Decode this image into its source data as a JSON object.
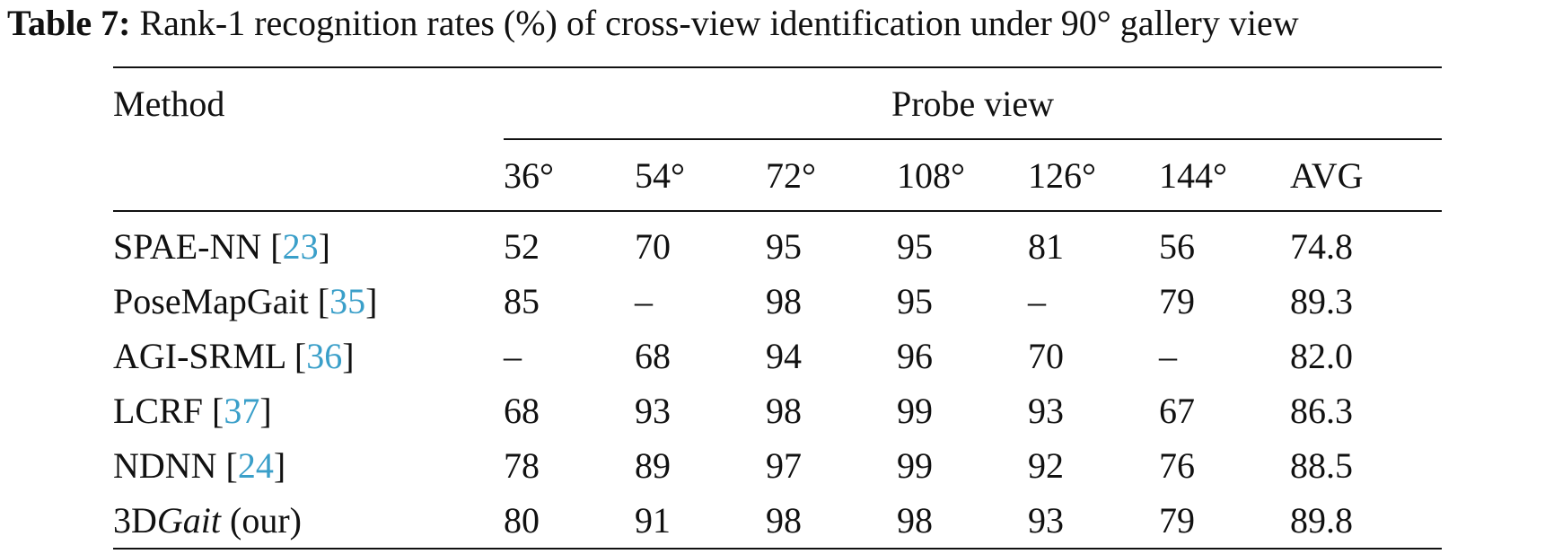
{
  "caption": {
    "label": "Table 7:",
    "text": "Rank-1 recognition rates (%) of cross-view identification under 90° gallery view"
  },
  "table": {
    "method_header": "Method",
    "group_header": "Probe view",
    "columns": [
      "36°",
      "54°",
      "72°",
      "108°",
      "126°",
      "144°",
      "AVG"
    ],
    "rows": [
      {
        "name": "SPAE-NN [",
        "ref": "23",
        "suffix": "]",
        "values": [
          "52",
          "70",
          "95",
          "95",
          "81",
          "56",
          "74.8"
        ]
      },
      {
        "name": "PoseMapGait [",
        "ref": "35",
        "suffix": "]",
        "values": [
          "85",
          "–",
          "98",
          "95",
          "–",
          "79",
          "89.3"
        ]
      },
      {
        "name": "AGI-SRML [",
        "ref": "36",
        "suffix": "]",
        "values": [
          "–",
          "68",
          "94",
          "96",
          "70",
          "–",
          "82.0"
        ]
      },
      {
        "name": "LCRF [",
        "ref": "37",
        "suffix": "]",
        "values": [
          "68",
          "93",
          "98",
          "99",
          "93",
          "67",
          "86.3"
        ]
      },
      {
        "name": "NDNN [",
        "ref": "24",
        "suffix": "]",
        "values": [
          "78",
          "89",
          "97",
          "99",
          "92",
          "76",
          "88.5"
        ]
      },
      {
        "name_prefix": "3D",
        "name_italic": "Gait",
        "name_suffix": " (our)",
        "values": [
          "80",
          "91",
          "98",
          "98",
          "93",
          "79",
          "89.8"
        ]
      }
    ]
  }
}
